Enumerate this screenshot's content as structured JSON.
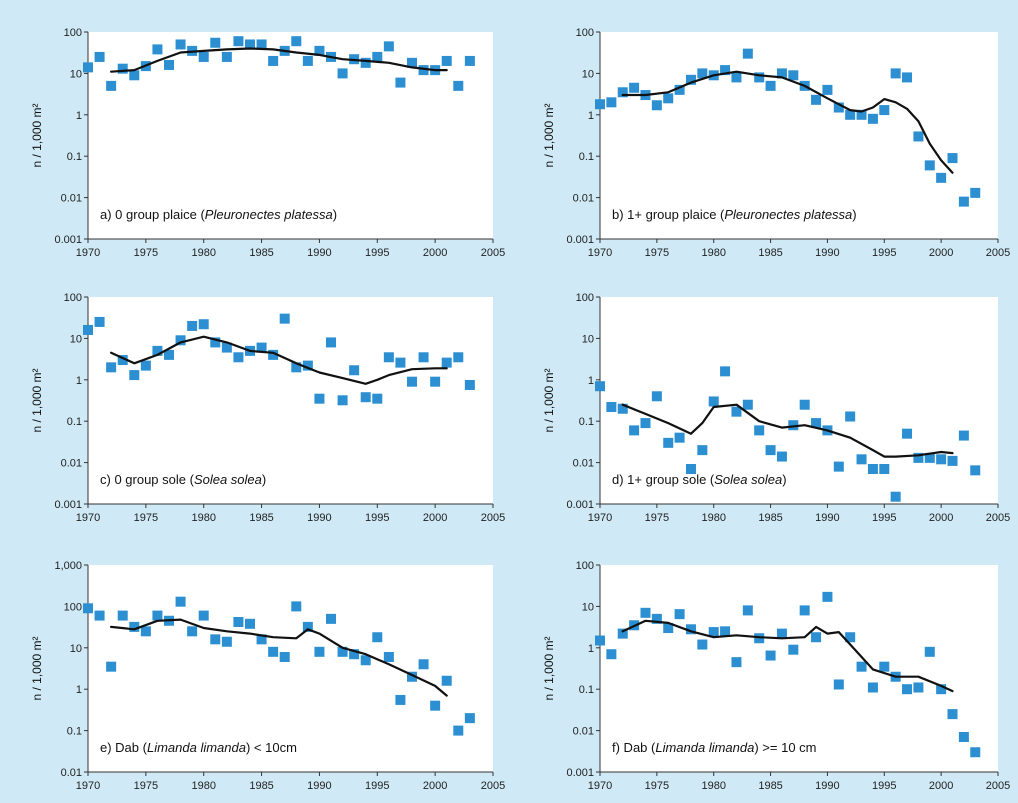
{
  "chart_data": [
    {
      "type": "scatter",
      "annotation": {
        "prefix": "a) 0 group plaice (",
        "species": "Pleuronectes platessa",
        "suffix": ")"
      },
      "ylabel": "n / 1,000 m²",
      "yscale": "log",
      "ylim": [
        0.001,
        100
      ],
      "ytick_labels": [
        "0.001",
        "0.01",
        "0.1",
        "1",
        "10",
        "100"
      ],
      "xlim": [
        1970,
        2005
      ],
      "xtick_labels": [
        "1970",
        "1975",
        "1980",
        "1985",
        "1990",
        "1995",
        "2000",
        "2005"
      ],
      "points": [
        [
          1970,
          14
        ],
        [
          1971,
          25
        ],
        [
          1972,
          5
        ],
        [
          1973,
          13
        ],
        [
          1974,
          9
        ],
        [
          1975,
          15
        ],
        [
          1976,
          38
        ],
        [
          1977,
          16
        ],
        [
          1978,
          50
        ],
        [
          1979,
          35
        ],
        [
          1980,
          25
        ],
        [
          1981,
          55
        ],
        [
          1982,
          25
        ],
        [
          1983,
          60
        ],
        [
          1984,
          50
        ],
        [
          1985,
          50
        ],
        [
          1986,
          20
        ],
        [
          1987,
          35
        ],
        [
          1988,
          60
        ],
        [
          1989,
          20
        ],
        [
          1990,
          35
        ],
        [
          1991,
          25
        ],
        [
          1992,
          10
        ],
        [
          1993,
          22
        ],
        [
          1994,
          18
        ],
        [
          1995,
          25
        ],
        [
          1996,
          45
        ],
        [
          1997,
          6
        ],
        [
          1998,
          18
        ],
        [
          1999,
          12
        ],
        [
          2000,
          12
        ],
        [
          2001,
          20
        ],
        [
          2002,
          5
        ],
        [
          2003,
          20
        ]
      ],
      "trend": [
        [
          1972,
          11
        ],
        [
          1974,
          12
        ],
        [
          1976,
          20
        ],
        [
          1978,
          32
        ],
        [
          1980,
          35
        ],
        [
          1982,
          38
        ],
        [
          1984,
          40
        ],
        [
          1986,
          38
        ],
        [
          1988,
          32
        ],
        [
          1990,
          28
        ],
        [
          1992,
          22
        ],
        [
          1994,
          20
        ],
        [
          1996,
          18
        ],
        [
          1998,
          14
        ],
        [
          2000,
          12
        ],
        [
          2001,
          12
        ]
      ]
    },
    {
      "type": "scatter",
      "annotation": {
        "prefix": "b) 1+ group plaice (",
        "species": "Pleuronectes platessa",
        "suffix": ")"
      },
      "ylabel": "n / 1,000 m²",
      "yscale": "log",
      "ylim": [
        0.001,
        100
      ],
      "ytick_labels": [
        "0.001",
        "0.01",
        "0.1",
        "1",
        "10",
        "100"
      ],
      "xlim": [
        1970,
        2005
      ],
      "xtick_labels": [
        "1970",
        "1975",
        "1980",
        "1985",
        "1990",
        "1995",
        "2000",
        "2005"
      ],
      "points": [
        [
          1970,
          1.8
        ],
        [
          1971,
          2.0
        ],
        [
          1972,
          3.5
        ],
        [
          1973,
          4.5
        ],
        [
          1974,
          3.0
        ],
        [
          1975,
          1.7
        ],
        [
          1976,
          2.5
        ],
        [
          1977,
          4.0
        ],
        [
          1978,
          7
        ],
        [
          1979,
          10
        ],
        [
          1980,
          9
        ],
        [
          1981,
          12
        ],
        [
          1982,
          8
        ],
        [
          1983,
          30
        ],
        [
          1984,
          8
        ],
        [
          1985,
          5
        ],
        [
          1986,
          10
        ],
        [
          1987,
          9
        ],
        [
          1988,
          5
        ],
        [
          1989,
          2.3
        ],
        [
          1990,
          4
        ],
        [
          1991,
          1.5
        ],
        [
          1992,
          1.0
        ],
        [
          1993,
          1.0
        ],
        [
          1994,
          0.8
        ],
        [
          1995,
          1.3
        ],
        [
          1996,
          10
        ],
        [
          1997,
          8
        ],
        [
          1998,
          0.3
        ],
        [
          1999,
          0.06
        ],
        [
          2000,
          0.03
        ],
        [
          2001,
          0.09
        ],
        [
          2002,
          0.008
        ],
        [
          2003,
          0.013
        ]
      ],
      "trend": [
        [
          1972,
          3
        ],
        [
          1974,
          3
        ],
        [
          1976,
          3.5
        ],
        [
          1978,
          6
        ],
        [
          1980,
          9
        ],
        [
          1982,
          11
        ],
        [
          1984,
          9
        ],
        [
          1986,
          8
        ],
        [
          1988,
          5
        ],
        [
          1990,
          2.5
        ],
        [
          1992,
          1.3
        ],
        [
          1993,
          1.2
        ],
        [
          1994,
          1.5
        ],
        [
          1995,
          2.4
        ],
        [
          1996,
          2.0
        ],
        [
          1997,
          1.4
        ],
        [
          1998,
          0.7
        ],
        [
          1999,
          0.2
        ],
        [
          2000,
          0.08
        ],
        [
          2001,
          0.04
        ]
      ]
    },
    {
      "type": "scatter",
      "annotation": {
        "prefix": "c) 0 group sole (",
        "species": "Solea solea",
        "suffix": ")"
      },
      "ylabel": "n / 1,000 m²",
      "yscale": "log",
      "ylim": [
        0.001,
        100
      ],
      "ytick_labels": [
        "0.001",
        "0.01",
        "0.1",
        "1",
        "10",
        "100"
      ],
      "xlim": [
        1970,
        2005
      ],
      "xtick_labels": [
        "1970",
        "1975",
        "1980",
        "1985",
        "1990",
        "1995",
        "2000",
        "2005"
      ],
      "points": [
        [
          1970,
          16
        ],
        [
          1971,
          25
        ],
        [
          1972,
          2
        ],
        [
          1973,
          3
        ],
        [
          1974,
          1.3
        ],
        [
          1975,
          2.2
        ],
        [
          1976,
          5
        ],
        [
          1977,
          4
        ],
        [
          1978,
          9
        ],
        [
          1979,
          20
        ],
        [
          1980,
          22
        ],
        [
          1981,
          8
        ],
        [
          1982,
          6
        ],
        [
          1983,
          3.5
        ],
        [
          1984,
          5
        ],
        [
          1985,
          6
        ],
        [
          1986,
          4
        ],
        [
          1987,
          30
        ],
        [
          1988,
          2
        ],
        [
          1989,
          2.2
        ],
        [
          1990,
          0.35
        ],
        [
          1991,
          8
        ],
        [
          1992,
          0.32
        ],
        [
          1993,
          1.7
        ],
        [
          1994,
          0.38
        ],
        [
          1995,
          0.35
        ],
        [
          1996,
          3.5
        ],
        [
          1997,
          2.6
        ],
        [
          1998,
          0.9
        ],
        [
          1999,
          3.5
        ],
        [
          2000,
          0.9
        ],
        [
          2001,
          2.6
        ],
        [
          2002,
          3.5
        ],
        [
          2003,
          0.75
        ]
      ],
      "trend": [
        [
          1972,
          4.5
        ],
        [
          1974,
          2.5
        ],
        [
          1976,
          4
        ],
        [
          1978,
          8
        ],
        [
          1980,
          11
        ],
        [
          1982,
          8
        ],
        [
          1984,
          5
        ],
        [
          1986,
          4.5
        ],
        [
          1988,
          2.5
        ],
        [
          1990,
          1.5
        ],
        [
          1992,
          1.1
        ],
        [
          1994,
          0.8
        ],
        [
          1995,
          1.0
        ],
        [
          1996,
          1.3
        ],
        [
          1998,
          1.8
        ],
        [
          2000,
          1.9
        ],
        [
          2001,
          1.9
        ]
      ]
    },
    {
      "type": "scatter",
      "annotation": {
        "prefix": "d) 1+ group sole (",
        "species": "Solea solea",
        "suffix": ")"
      },
      "ylabel": "n / 1,000 m²",
      "yscale": "log",
      "ylim": [
        0.001,
        100
      ],
      "ytick_labels": [
        "0.001",
        "0.01",
        "0.1",
        "1",
        "10",
        "100"
      ],
      "xlim": [
        1970,
        2005
      ],
      "xtick_labels": [
        "1970",
        "1975",
        "1980",
        "1985",
        "1990",
        "1995",
        "2000",
        "2005"
      ],
      "points": [
        [
          1970,
          0.7
        ],
        [
          1971,
          0.22
        ],
        [
          1972,
          0.2
        ],
        [
          1973,
          0.06
        ],
        [
          1974,
          0.09
        ],
        [
          1975,
          0.4
        ],
        [
          1976,
          0.03
        ],
        [
          1977,
          0.04
        ],
        [
          1978,
          0.007
        ],
        [
          1979,
          0.02
        ],
        [
          1980,
          0.3
        ],
        [
          1981,
          1.6
        ],
        [
          1982,
          0.17
        ],
        [
          1983,
          0.25
        ],
        [
          1984,
          0.06
        ],
        [
          1985,
          0.02
        ],
        [
          1986,
          0.014
        ],
        [
          1987,
          0.08
        ],
        [
          1988,
          0.25
        ],
        [
          1989,
          0.09
        ],
        [
          1990,
          0.06
        ],
        [
          1991,
          0.008
        ],
        [
          1992,
          0.13
        ],
        [
          1993,
          0.012
        ],
        [
          1994,
          0.007
        ],
        [
          1995,
          0.007
        ],
        [
          1996,
          0.0015
        ],
        [
          1997,
          0.05
        ],
        [
          1998,
          0.013
        ],
        [
          1999,
          0.013
        ],
        [
          2000,
          0.012
        ],
        [
          2001,
          0.011
        ],
        [
          2002,
          0.045
        ],
        [
          2003,
          0.0065
        ]
      ],
      "trend": [
        [
          1972,
          0.25
        ],
        [
          1974,
          0.15
        ],
        [
          1976,
          0.09
        ],
        [
          1978,
          0.05
        ],
        [
          1979,
          0.09
        ],
        [
          1980,
          0.22
        ],
        [
          1982,
          0.25
        ],
        [
          1984,
          0.1
        ],
        [
          1986,
          0.07
        ],
        [
          1988,
          0.08
        ],
        [
          1990,
          0.06
        ],
        [
          1992,
          0.04
        ],
        [
          1994,
          0.02
        ],
        [
          1995,
          0.014
        ],
        [
          1996,
          0.014
        ],
        [
          1998,
          0.015
        ],
        [
          2000,
          0.018
        ],
        [
          2001,
          0.017
        ]
      ]
    },
    {
      "type": "scatter",
      "annotation": {
        "prefix": "e) Dab (",
        "species": "Limanda limanda",
        "suffix": ") < 10cm"
      },
      "ylabel": "n / 1,000 m²",
      "yscale": "log",
      "ylim": [
        0.01,
        1000
      ],
      "ytick_labels": [
        "0.01",
        "0.1",
        "1",
        "10",
        "100",
        "1,000"
      ],
      "xlim": [
        1970,
        2005
      ],
      "xtick_labels": [
        "1970",
        "1975",
        "1980",
        "1985",
        "1990",
        "1995",
        "2000",
        "2005"
      ],
      "points": [
        [
          1970,
          90
        ],
        [
          1971,
          60
        ],
        [
          1972,
          3.5
        ],
        [
          1973,
          60
        ],
        [
          1974,
          32
        ],
        [
          1975,
          25
        ],
        [
          1976,
          60
        ],
        [
          1977,
          45
        ],
        [
          1978,
          130
        ],
        [
          1979,
          25
        ],
        [
          1980,
          60
        ],
        [
          1981,
          16
        ],
        [
          1982,
          14
        ],
        [
          1983,
          42
        ],
        [
          1984,
          38
        ],
        [
          1985,
          16
        ],
        [
          1986,
          8
        ],
        [
          1987,
          6
        ],
        [
          1988,
          100
        ],
        [
          1989,
          32
        ],
        [
          1990,
          8
        ],
        [
          1991,
          50
        ],
        [
          1992,
          8
        ],
        [
          1993,
          7
        ],
        [
          1994,
          5
        ],
        [
          1995,
          18
        ],
        [
          1996,
          6
        ],
        [
          1997,
          0.55
        ],
        [
          1998,
          2
        ],
        [
          1999,
          4
        ],
        [
          2000,
          0.4
        ],
        [
          2001,
          1.6
        ],
        [
          2002,
          0.1
        ],
        [
          2003,
          0.2
        ]
      ],
      "trend": [
        [
          1972,
          32
        ],
        [
          1974,
          28
        ],
        [
          1976,
          45
        ],
        [
          1978,
          48
        ],
        [
          1980,
          30
        ],
        [
          1982,
          25
        ],
        [
          1984,
          22
        ],
        [
          1986,
          18
        ],
        [
          1988,
          17
        ],
        [
          1989,
          28
        ],
        [
          1990,
          22
        ],
        [
          1992,
          10
        ],
        [
          1994,
          7
        ],
        [
          1996,
          4
        ],
        [
          1998,
          2.2
        ],
        [
          2000,
          1.2
        ],
        [
          2001,
          0.7
        ]
      ]
    },
    {
      "type": "scatter",
      "annotation": {
        "prefix": "f) Dab (",
        "species": "Limanda limanda",
        "suffix": ") >= 10 cm"
      },
      "ylabel": "n / 1,000 m²",
      "yscale": "log",
      "ylim": [
        0.001,
        100
      ],
      "ytick_labels": [
        "0.001",
        "0.01",
        "0.1",
        "1",
        "10",
        "100"
      ],
      "xlim": [
        1970,
        2005
      ],
      "xtick_labels": [
        "1970",
        "1975",
        "1980",
        "1985",
        "1990",
        "1995",
        "2000",
        "2005"
      ],
      "points": [
        [
          1970,
          1.5
        ],
        [
          1971,
          0.7
        ],
        [
          1972,
          2.2
        ],
        [
          1973,
          3.5
        ],
        [
          1974,
          7
        ],
        [
          1975,
          5
        ],
        [
          1976,
          3
        ],
        [
          1977,
          6.5
        ],
        [
          1978,
          2.8
        ],
        [
          1979,
          1.2
        ],
        [
          1980,
          2.4
        ],
        [
          1981,
          2.5
        ],
        [
          1982,
          0.45
        ],
        [
          1983,
          8
        ],
        [
          1984,
          1.7
        ],
        [
          1985,
          0.65
        ],
        [
          1986,
          2.2
        ],
        [
          1987,
          0.9
        ],
        [
          1988,
          8
        ],
        [
          1989,
          1.8
        ],
        [
          1990,
          17
        ],
        [
          1991,
          0.13
        ],
        [
          1992,
          1.8
        ],
        [
          1993,
          0.35
        ],
        [
          1994,
          0.11
        ],
        [
          1995,
          0.35
        ],
        [
          1996,
          0.2
        ],
        [
          1997,
          0.1
        ],
        [
          1998,
          0.11
        ],
        [
          1999,
          0.8
        ],
        [
          2000,
          0.1
        ],
        [
          2001,
          0.025
        ],
        [
          2002,
          0.007
        ],
        [
          2003,
          0.003
        ]
      ],
      "trend": [
        [
          1972,
          2.5
        ],
        [
          1974,
          4.5
        ],
        [
          1976,
          4
        ],
        [
          1978,
          2.5
        ],
        [
          1980,
          1.8
        ],
        [
          1982,
          2
        ],
        [
          1984,
          1.8
        ],
        [
          1986,
          1.7
        ],
        [
          1988,
          1.8
        ],
        [
          1989,
          3.2
        ],
        [
          1990,
          2.2
        ],
        [
          1991,
          2.4
        ],
        [
          1992,
          1.2
        ],
        [
          1994,
          0.3
        ],
        [
          1996,
          0.2
        ],
        [
          1998,
          0.2
        ],
        [
          2000,
          0.12
        ],
        [
          2001,
          0.09
        ]
      ]
    }
  ]
}
